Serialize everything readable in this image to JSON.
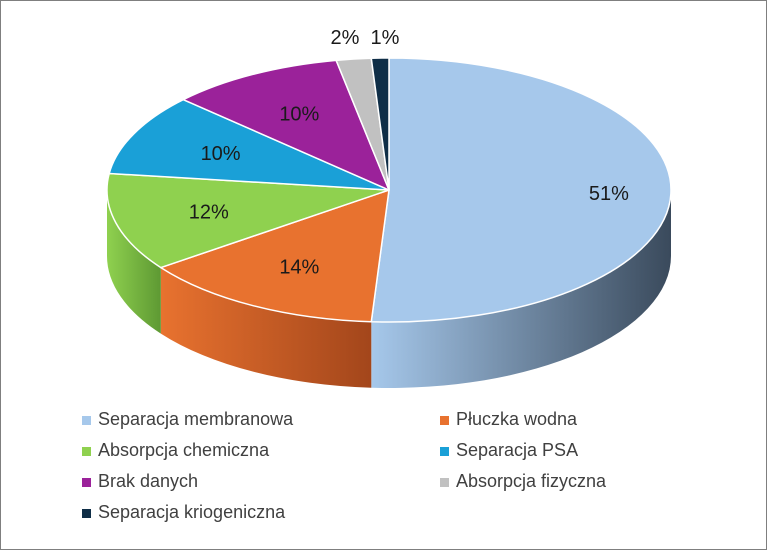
{
  "chart_data": {
    "type": "pie",
    "style": "3d",
    "categories": [
      "Separacja membranowa",
      "Płuczka wodna",
      "Absorpcja chemiczna",
      "Separacja PSA",
      "Brak danych",
      "Absorpcja fizyczna",
      "Separacja kriogeniczna"
    ],
    "values": [
      51,
      14,
      12,
      10,
      10,
      2,
      1
    ],
    "labels": [
      "51%",
      "14%",
      "12%",
      "10%",
      "10%",
      "2%",
      "1%"
    ],
    "colors": [
      "#a6c8eb",
      "#e8722f",
      "#8fd14f",
      "#1aa0d7",
      "#9b229a",
      "#c1c1c1",
      "#0f2e47"
    ],
    "side_colors": [
      "#3a4a5c",
      "#a3461b",
      "#5e9933",
      "#0d6f96",
      "#6b1569",
      "#8a8a8a",
      "#0a1f31"
    ],
    "legend_position": "bottom"
  }
}
